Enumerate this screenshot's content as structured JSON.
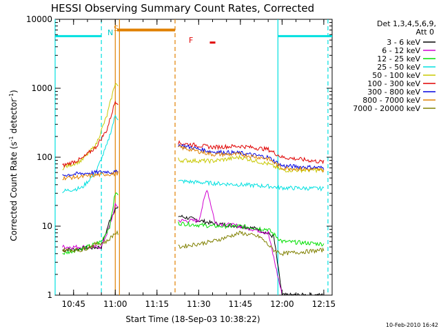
{
  "chart_data": {
    "type": "line",
    "title": "HESSI Observing Summary Count Rates, Corrected",
    "xlabel": "Start Time (18-Sep-03 10:38:22)",
    "ylabel_main": "Corrected Count Rate (s",
    "ylabel_sup1": "-1",
    "ylabel_mid": " detector",
    "ylabel_sup2": "-1",
    "ylabel_end": ")",
    "y_scale": "log",
    "ylim": [
      1,
      10000
    ],
    "xlim": [
      "10:38:22",
      "12:18:00"
    ],
    "x_ticks": [
      "10:45",
      "11:00",
      "11:15",
      "11:30",
      "11:45",
      "12:00",
      "12:15"
    ],
    "y_ticks": [
      "1",
      "10",
      "100",
      "1000",
      "10000"
    ],
    "legend_title_1": "Det 1,3,4,5,6,9,",
    "legend_title_2": "Att 0",
    "legend_placement": "right",
    "timestamp": "10-Feb-2010 16:42",
    "flags": {
      "N_label": "N",
      "S_label": "S",
      "F_label": "F"
    },
    "series": [
      {
        "name": "3 - 6 keV",
        "color": "#000000"
      },
      {
        "name": "6 - 12 keV",
        "color": "#d000d0"
      },
      {
        "name": "12 - 25 keV",
        "color": "#00e000"
      },
      {
        "name": "25 - 50 keV",
        "color": "#00e0e0"
      },
      {
        "name": "50 - 100 keV",
        "color": "#c8c800"
      },
      {
        "name": "100 - 300 keV",
        "color": "#e00000"
      },
      {
        "name": "300 - 800 keV",
        "color": "#0000e0"
      },
      {
        "name": "800 - 7000 keV",
        "color": "#e08000"
      },
      {
        "name": "7000 - 20000 keV",
        "color": "#808000"
      }
    ],
    "series_points": {
      "3 - 6 keV": {
        "x": [
          "10:41",
          "10:55",
          "10:58",
          "11:00",
          "11:23",
          "11:35",
          "11:45",
          "11:52",
          "11:57",
          "12:00",
          "12:15"
        ],
        "y": [
          4.5,
          5,
          12,
          18,
          14,
          11,
          10,
          9,
          7,
          1,
          1
        ]
      },
      "6 - 12 keV": {
        "x": [
          "10:41",
          "10:55",
          "10:58",
          "11:00",
          "11:23",
          "11:30",
          "11:33",
          "11:36",
          "11:45",
          "11:55",
          "12:00"
        ],
        "y": [
          5,
          5,
          10,
          20,
          12,
          12,
          35,
          11,
          10,
          8,
          1
        ]
      },
      "12 - 25 keV": {
        "x": [
          "10:41",
          "10:50",
          "10:55",
          "10:58",
          "11:00",
          "11:23",
          "11:35",
          "11:45",
          "11:55",
          "12:00",
          "12:15"
        ],
        "y": [
          4,
          5,
          6,
          10,
          30,
          11,
          10,
          10,
          9,
          6,
          5.5
        ]
      },
      "25 - 50 keV": {
        "x": [
          "10:41",
          "10:48",
          "10:53",
          "10:57",
          "11:00",
          "11:23",
          "11:35",
          "11:45",
          "11:55",
          "12:00",
          "12:15"
        ],
        "y": [
          32,
          36,
          60,
          150,
          400,
          45,
          42,
          40,
          38,
          36,
          35
        ]
      },
      "50 - 100 keV": {
        "x": [
          "10:41",
          "10:48",
          "10:53",
          "10:57",
          "11:00",
          "11:23",
          "11:35",
          "11:45",
          "11:55",
          "12:00",
          "12:15"
        ],
        "y": [
          70,
          90,
          150,
          400,
          1200,
          90,
          88,
          100,
          80,
          65,
          65
        ]
      },
      "100 - 300 keV": {
        "x": [
          "10:41",
          "10:48",
          "10:53",
          "10:57",
          "11:00",
          "11:23",
          "11:35",
          "11:45",
          "11:55",
          "12:00",
          "12:15"
        ],
        "y": [
          75,
          95,
          140,
          250,
          650,
          160,
          140,
          145,
          130,
          100,
          85
        ]
      },
      "300 - 800 keV": {
        "x": [
          "10:41",
          "10:48",
          "10:53",
          "10:57",
          "11:00",
          "11:23",
          "11:35",
          "11:45",
          "11:55",
          "12:00",
          "12:15"
        ],
        "y": [
          55,
          58,
          60,
          62,
          60,
          150,
          120,
          115,
          100,
          75,
          70
        ]
      },
      "800 - 7000 keV": {
        "x": [
          "10:41",
          "10:48",
          "10:53",
          "10:57",
          "11:00",
          "11:23",
          "11:35",
          "11:45",
          "11:55",
          "12:00",
          "12:15"
        ],
        "y": [
          50,
          52,
          55,
          57,
          57,
          140,
          110,
          110,
          95,
          70,
          65
        ]
      },
      "7000 - 20000 keV": {
        "x": [
          "10:41",
          "10:48",
          "10:53",
          "10:57",
          "11:00",
          "11:23",
          "11:35",
          "11:45",
          "11:52",
          "11:57",
          "12:00",
          "12:15"
        ],
        "y": [
          4.5,
          4.5,
          5.5,
          6,
          8,
          5,
          6,
          8,
          7,
          4.5,
          4,
          4.5
        ]
      }
    },
    "bands": {
      "cyan_night": [
        {
          "x": [
            "10:38:22",
            "10:55"
          ],
          "y": 5700
        },
        {
          "x": [
            "11:58:30",
            "12:18"
          ],
          "y": 5700
        }
      ],
      "orange_saa": [
        {
          "x": [
            "11:00:40",
            "11:21:30"
          ],
          "y": 7000
        }
      ],
      "red_flare": [
        {
          "x": [
            "11:34",
            "11:36"
          ],
          "y": 4600
        }
      ]
    },
    "vlines": [
      {
        "time": "10:38:22",
        "color": "#00e0e0",
        "style": "solid"
      },
      {
        "time": "10:55:00",
        "color": "#00e0e0",
        "style": "dashed"
      },
      {
        "time": "11:00:00",
        "color": "#e08000",
        "style": "solid"
      },
      {
        "time": "11:01:30",
        "color": "#e08000",
        "style": "solid"
      },
      {
        "time": "11:21:30",
        "color": "#e08000",
        "style": "dashed"
      },
      {
        "time": "11:58:30",
        "color": "#00e0e0",
        "style": "solid"
      },
      {
        "time": "12:16:30",
        "color": "#00e0e0",
        "style": "dashed"
      }
    ]
  }
}
